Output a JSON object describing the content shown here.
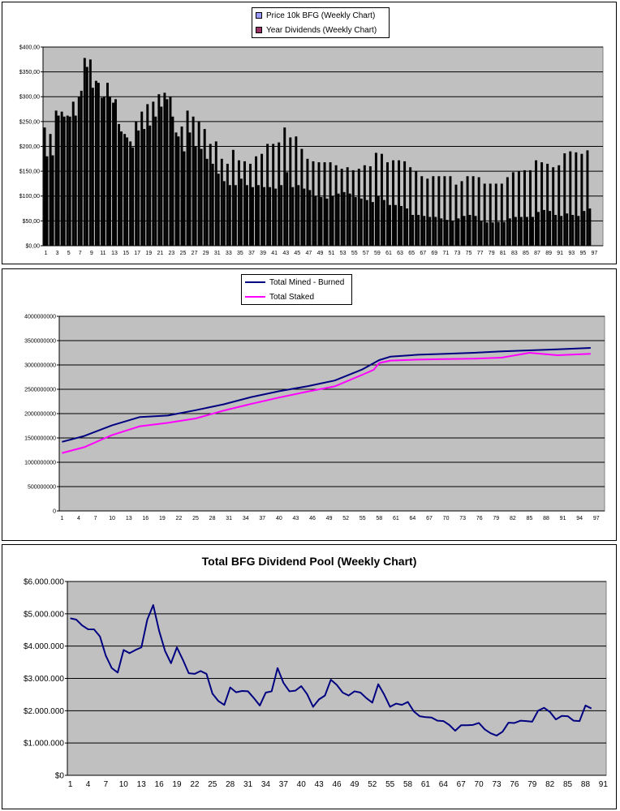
{
  "charts": {
    "chart1": {
      "legend": [
        "Price 10k BFG (Weekly Chart)",
        "Year Dividends (Weekly Chart)"
      ]
    },
    "chart2": {
      "legend": [
        "Total Mined - Burned",
        "Total Staked"
      ]
    },
    "chart3": {
      "title": "Total BFG Dividend Pool (Weekly Chart)"
    }
  },
  "chart_data": [
    {
      "type": "bar",
      "title": "",
      "xlabel": "",
      "ylabel": "",
      "ylim": [
        0,
        400
      ],
      "y_ticks": [
        "$0,00",
        "$50,00",
        "$100,00",
        "$150,00",
        "$200,00",
        "$250,00",
        "$300,00",
        "$350,00",
        "$400,00"
      ],
      "x_ticks": [
        "1",
        "3",
        "5",
        "7",
        "9",
        "11",
        "13",
        "15",
        "17",
        "19",
        "21",
        "23",
        "25",
        "27",
        "29",
        "31",
        "33",
        "35",
        "37",
        "39",
        "41",
        "43",
        "45",
        "47",
        "49",
        "51",
        "53",
        "55",
        "57",
        "59",
        "61",
        "63",
        "65",
        "67",
        "69",
        "71",
        "73",
        "75",
        "77",
        "79",
        "81",
        "83",
        "85",
        "87",
        "89",
        "91",
        "93",
        "95",
        "97"
      ],
      "grid": true,
      "legend_position": "top-center",
      "colors": {
        "Price 10k BFG (Weekly Chart)": "#9999ff",
        "Year Dividends (Weekly Chart)": "#993366",
        "bar_fill": "#000000",
        "plot_bg": "#c0c0c0"
      },
      "series": [
        {
          "name": "Price 10k BFG (Weekly Chart)",
          "values": [
            238,
            225,
            272,
            270,
            262,
            290,
            300,
            378,
            375,
            332,
            298,
            328,
            288,
            245,
            225,
            210,
            250,
            270,
            285,
            290,
            305,
            308,
            300,
            228,
            240,
            272,
            260,
            250,
            235,
            205,
            210,
            175,
            165,
            193,
            172,
            170,
            165,
            180,
            185,
            205,
            205,
            208,
            238,
            218,
            220,
            195,
            175,
            170,
            168,
            168,
            168,
            162,
            155,
            158,
            152,
            155,
            162,
            160,
            187,
            185,
            168,
            172,
            172,
            170,
            158,
            150,
            140,
            135,
            140,
            140,
            140,
            140,
            123,
            130,
            140,
            140,
            138,
            125,
            125,
            125,
            125,
            138,
            148,
            150,
            152,
            152,
            172,
            168,
            165,
            158,
            162,
            186,
            190,
            188,
            185,
            192
          ]
        },
        {
          "name": "Year Dividends (Weekly Chart)",
          "values": [
            180,
            182,
            262,
            260,
            260,
            262,
            312,
            360,
            318,
            328,
            300,
            300,
            295,
            230,
            218,
            198,
            232,
            235,
            242,
            260,
            280,
            295,
            260,
            220,
            190,
            228,
            200,
            195,
            175,
            165,
            145,
            130,
            122,
            122,
            135,
            122,
            118,
            122,
            118,
            118,
            115,
            122,
            148,
            118,
            122,
            115,
            112,
            100,
            98,
            95,
            100,
            105,
            108,
            105,
            98,
            95,
            92,
            88,
            100,
            92,
            82,
            82,
            80,
            75,
            62,
            62,
            60,
            58,
            58,
            55,
            52,
            50,
            55,
            60,
            62,
            60,
            50,
            47,
            47,
            48,
            48,
            55,
            58,
            58,
            58,
            58,
            68,
            72,
            70,
            62,
            60,
            65,
            62,
            60,
            70,
            75
          ]
        }
      ]
    },
    {
      "type": "line",
      "title": "",
      "xlabel": "",
      "ylabel": "",
      "ylim": [
        0,
        4000000000
      ],
      "y_ticks": [
        "0",
        "500000000",
        "1000000000",
        "1500000000",
        "2000000000",
        "2500000000",
        "3000000000",
        "3500000000",
        "4000000000"
      ],
      "x_ticks": [
        "1",
        "4",
        "7",
        "10",
        "13",
        "16",
        "19",
        "22",
        "25",
        "28",
        "31",
        "34",
        "37",
        "40",
        "43",
        "46",
        "49",
        "52",
        "55",
        "58",
        "61",
        "64",
        "67",
        "70",
        "73",
        "76",
        "79",
        "82",
        "85",
        "88",
        "91",
        "94",
        "97"
      ],
      "grid": true,
      "legend_position": "top-center",
      "colors": {
        "Total Mined - Burned": "#000080",
        "Total Staked": "#ff00ff",
        "plot_bg": "#c0c0c0"
      },
      "series": [
        {
          "name": "Total Mined - Burned",
          "x": [
            1,
            5,
            10,
            15,
            20,
            25,
            30,
            35,
            40,
            45,
            50,
            55,
            58,
            60,
            65,
            70,
            75,
            80,
            85,
            90,
            96
          ],
          "values": [
            1420000000,
            1540000000,
            1760000000,
            1930000000,
            1960000000,
            2070000000,
            2190000000,
            2340000000,
            2460000000,
            2560000000,
            2680000000,
            2910000000,
            3100000000,
            3170000000,
            3210000000,
            3230000000,
            3250000000,
            3280000000,
            3300000000,
            3320000000,
            3350000000
          ]
        },
        {
          "name": "Total Staked",
          "x": [
            1,
            5,
            10,
            15,
            20,
            25,
            30,
            35,
            40,
            45,
            50,
            55,
            57,
            58,
            60,
            65,
            70,
            75,
            80,
            85,
            90,
            96
          ],
          "values": [
            1190000000,
            1310000000,
            1560000000,
            1740000000,
            1810000000,
            1900000000,
            2060000000,
            2200000000,
            2330000000,
            2450000000,
            2560000000,
            2800000000,
            2900000000,
            3040000000,
            3090000000,
            3110000000,
            3120000000,
            3130000000,
            3150000000,
            3250000000,
            3200000000,
            3230000000
          ]
        }
      ]
    },
    {
      "type": "line",
      "title": "Total BFG Dividend Pool (Weekly Chart)",
      "xlabel": "",
      "ylabel": "",
      "ylim": [
        0,
        6000000
      ],
      "y_ticks": [
        "$0",
        "$1.000.000",
        "$2.000.000",
        "$3.000.000",
        "$4.000.000",
        "$5.000.000",
        "$6.000.000"
      ],
      "x_ticks": [
        "1",
        "4",
        "7",
        "10",
        "13",
        "16",
        "19",
        "22",
        "25",
        "28",
        "31",
        "34",
        "37",
        "40",
        "43",
        "46",
        "49",
        "52",
        "55",
        "58",
        "61",
        "64",
        "67",
        "70",
        "73",
        "76",
        "79",
        "82",
        "85",
        "88",
        "91"
      ],
      "grid": true,
      "colors": {
        "line": "#000080",
        "plot_bg": "#c0c0c0"
      },
      "series": [
        {
          "values": [
            4860000,
            4820000,
            4640000,
            4520000,
            4520000,
            4300000,
            3700000,
            3320000,
            3180000,
            3880000,
            3780000,
            3880000,
            3960000,
            4820000,
            5270000,
            4470000,
            3850000,
            3470000,
            3960000,
            3580000,
            3160000,
            3140000,
            3230000,
            3140000,
            2530000,
            2300000,
            2180000,
            2720000,
            2570000,
            2610000,
            2600000,
            2390000,
            2160000,
            2560000,
            2600000,
            3320000,
            2860000,
            2600000,
            2620000,
            2760000,
            2510000,
            2120000,
            2350000,
            2470000,
            2960000,
            2800000,
            2560000,
            2470000,
            2600000,
            2560000,
            2390000,
            2250000,
            2820000,
            2500000,
            2120000,
            2220000,
            2180000,
            2270000,
            1980000,
            1830000,
            1800000,
            1790000,
            1690000,
            1680000,
            1560000,
            1380000,
            1550000,
            1550000,
            1560000,
            1620000,
            1420000,
            1300000,
            1230000,
            1350000,
            1630000,
            1620000,
            1690000,
            1680000,
            1660000,
            2000000,
            2090000,
            1960000,
            1730000,
            1840000,
            1830000,
            1690000,
            1680000,
            2160000,
            2070000
          ]
        }
      ]
    }
  ]
}
